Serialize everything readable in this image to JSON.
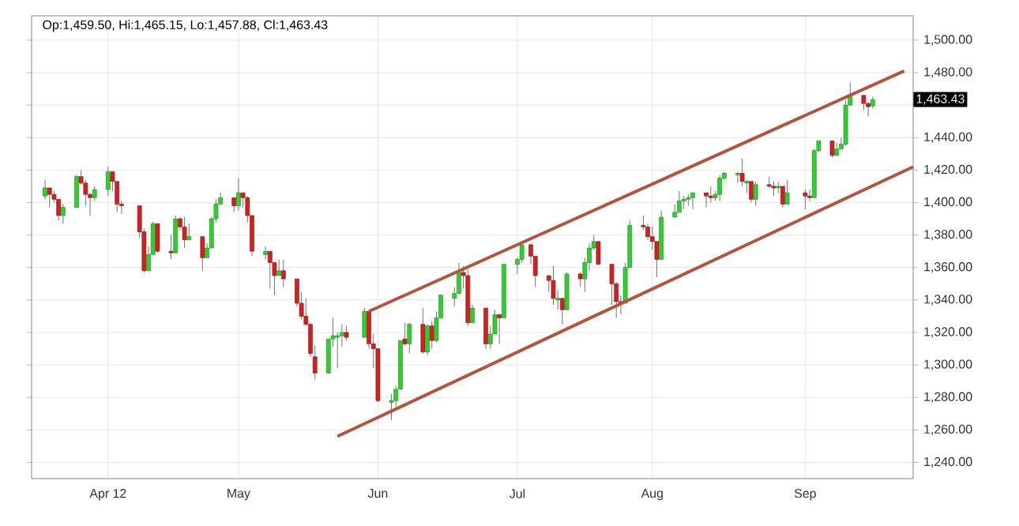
{
  "chart_data": {
    "type": "candlestick",
    "annotations": [
      "Op:1,459.50, Hi:1,465.15, Lo:1,457.88, Cl:1,463.43",
      "1,463.43"
    ],
    "xlim": [
      "2012-03-16",
      "2012-09-28"
    ],
    "xticks": [
      {
        "value": "2012-04-02",
        "label": "Apr 12"
      },
      {
        "value": "2012-05-01",
        "label": "May"
      },
      {
        "value": "2012-06-01",
        "label": "Jun"
      },
      {
        "value": "2012-07-02",
        "label": "Jul"
      },
      {
        "value": "2012-08-01",
        "label": "Aug"
      },
      {
        "value": "2012-09-04",
        "label": "Sep"
      }
    ],
    "ylim": [
      1230,
      1515
    ],
    "yticks": [
      {
        "value": 1240,
        "label": "1,240.00"
      },
      {
        "value": 1260,
        "label": "1,260.00"
      },
      {
        "value": 1280,
        "label": "1,280.00"
      },
      {
        "value": 1300,
        "label": "1,300.00"
      },
      {
        "value": 1320,
        "label": "1,320.00"
      },
      {
        "value": 1340,
        "label": "1,340.00"
      },
      {
        "value": 1360,
        "label": "1,360.00"
      },
      {
        "value": 1380,
        "label": "1,380.00"
      },
      {
        "value": 1400,
        "label": "1,400.00"
      },
      {
        "value": 1420,
        "label": "1,420.00"
      },
      {
        "value": 1440,
        "label": "1,440.00"
      },
      {
        "value": 1460,
        "label": null
      },
      {
        "value": 1480,
        "label": "1,480.00"
      },
      {
        "value": 1500,
        "label": "1,500.00"
      }
    ],
    "grid": true,
    "series": [
      {
        "x": [
          "2012-03-19",
          "2012-03-20",
          "2012-03-21",
          "2012-03-22",
          "2012-03-23",
          "2012-03-26",
          "2012-03-27",
          "2012-03-28",
          "2012-03-29",
          "2012-03-30",
          "2012-04-02",
          "2012-04-03",
          "2012-04-04",
          "2012-04-05",
          "2012-04-09",
          "2012-04-10",
          "2012-04-11",
          "2012-04-12",
          "2012-04-13",
          "2012-04-16",
          "2012-04-17",
          "2012-04-18",
          "2012-04-19",
          "2012-04-20",
          "2012-04-23",
          "2012-04-24",
          "2012-04-25",
          "2012-04-26",
          "2012-04-27",
          "2012-04-30",
          "2012-05-01",
          "2012-05-02",
          "2012-05-03",
          "2012-05-04",
          "2012-05-07",
          "2012-05-08",
          "2012-05-09",
          "2012-05-10",
          "2012-05-11",
          "2012-05-14",
          "2012-05-15",
          "2012-05-16",
          "2012-05-17",
          "2012-05-18",
          "2012-05-21",
          "2012-05-22",
          "2012-05-23",
          "2012-05-24",
          "2012-05-25",
          "2012-05-29",
          "2012-05-30",
          "2012-05-31",
          "2012-06-01",
          "2012-06-04",
          "2012-06-05",
          "2012-06-06",
          "2012-06-07",
          "2012-06-08",
          "2012-06-11",
          "2012-06-12",
          "2012-06-13",
          "2012-06-14",
          "2012-06-15",
          "2012-06-18",
          "2012-06-19",
          "2012-06-20",
          "2012-06-21",
          "2012-06-22",
          "2012-06-25",
          "2012-06-26",
          "2012-06-27",
          "2012-06-28",
          "2012-06-29",
          "2012-07-02",
          "2012-07-03",
          "2012-07-05",
          "2012-07-06",
          "2012-07-09",
          "2012-07-10",
          "2012-07-11",
          "2012-07-12",
          "2012-07-13",
          "2012-07-16",
          "2012-07-17",
          "2012-07-18",
          "2012-07-19",
          "2012-07-20",
          "2012-07-23",
          "2012-07-24",
          "2012-07-25",
          "2012-07-26",
          "2012-07-27",
          "2012-07-30",
          "2012-07-31",
          "2012-08-01",
          "2012-08-02",
          "2012-08-03",
          "2012-08-06",
          "2012-08-07",
          "2012-08-08",
          "2012-08-09",
          "2012-08-10",
          "2012-08-13",
          "2012-08-14",
          "2012-08-15",
          "2012-08-16",
          "2012-08-17",
          "2012-08-20",
          "2012-08-21",
          "2012-08-22",
          "2012-08-23",
          "2012-08-24",
          "2012-08-27",
          "2012-08-28",
          "2012-08-29",
          "2012-08-30",
          "2012-08-31",
          "2012-09-04",
          "2012-09-05",
          "2012-09-06",
          "2012-09-07",
          "2012-09-10",
          "2012-09-11",
          "2012-09-12",
          "2012-09-13",
          "2012-09-14",
          "2012-09-17",
          "2012-09-18",
          "2012-09-19"
        ],
        "ohlc": [
          [
            1404,
            1414,
            1402,
            1409
          ],
          [
            1409,
            1409,
            1397,
            1405
          ],
          [
            1405,
            1407,
            1400,
            1402
          ],
          [
            1402,
            1402,
            1389,
            1392
          ],
          [
            1392,
            1399,
            1387,
            1397
          ],
          [
            1397,
            1417,
            1397,
            1416
          ],
          [
            1416,
            1420,
            1411,
            1412
          ],
          [
            1412,
            1414,
            1398,
            1405
          ],
          [
            1405,
            1406,
            1392,
            1403
          ],
          [
            1403,
            1410,
            1401,
            1408
          ],
          [
            1408,
            1422,
            1404,
            1419
          ],
          [
            1419,
            1419,
            1407,
            1413
          ],
          [
            1413,
            1413,
            1394,
            1399
          ],
          [
            1399,
            1401,
            1393,
            1398
          ],
          [
            1398,
            1398,
            1378,
            1382
          ],
          [
            1382,
            1384,
            1357,
            1358
          ],
          [
            1358,
            1373,
            1358,
            1368
          ],
          [
            1368,
            1388,
            1368,
            1387
          ],
          [
            1387,
            1387,
            1369,
            1370
          ],
          [
            1370,
            1380,
            1365,
            1369
          ],
          [
            1369,
            1392,
            1369,
            1390
          ],
          [
            1390,
            1391,
            1383,
            1385
          ],
          [
            1385,
            1391,
            1372,
            1377
          ],
          [
            1377,
            1387,
            1377,
            1379
          ],
          [
            1379,
            1379,
            1358,
            1366
          ],
          [
            1366,
            1375,
            1366,
            1372
          ],
          [
            1372,
            1391,
            1372,
            1390
          ],
          [
            1390,
            1402,
            1388,
            1399
          ],
          [
            1399,
            1406,
            1399,
            1403
          ],
          [
            1403,
            1403,
            1394,
            1398
          ],
          [
            1398,
            1415,
            1395,
            1406
          ],
          [
            1406,
            1406,
            1397,
            1403
          ],
          [
            1403,
            1404,
            1388,
            1392
          ],
          [
            1392,
            1392,
            1367,
            1370
          ],
          [
            1368,
            1373,
            1365,
            1370
          ],
          [
            1370,
            1370,
            1347,
            1363
          ],
          [
            1363,
            1363,
            1343,
            1355
          ],
          [
            1355,
            1365,
            1355,
            1358
          ],
          [
            1358,
            1365,
            1348,
            1353
          ],
          [
            1353,
            1353,
            1336,
            1338
          ],
          [
            1338,
            1345,
            1328,
            1330
          ],
          [
            1330,
            1341,
            1324,
            1325
          ],
          [
            1325,
            1326,
            1305,
            1307
          ],
          [
            1305,
            1312,
            1291,
            1295
          ],
          [
            1295,
            1316,
            1295,
            1316
          ],
          [
            1316,
            1329,
            1311,
            1318
          ],
          [
            1317,
            1320,
            1298,
            1318
          ],
          [
            1318,
            1325,
            1311,
            1320
          ],
          [
            1320,
            1324,
            1315,
            1317
          ],
          [
            1317,
            1335,
            1317,
            1333
          ],
          [
            1333,
            1333,
            1310,
            1313
          ],
          [
            1313,
            1319,
            1298,
            1310
          ],
          [
            1310,
            1310,
            1277,
            1278
          ],
          [
            1277,
            1282,
            1266,
            1278
          ],
          [
            1278,
            1287,
            1274,
            1285
          ],
          [
            1285,
            1315,
            1285,
            1315
          ],
          [
            1316,
            1326,
            1312,
            1313
          ],
          [
            1313,
            1326,
            1307,
            1325
          ],
          [
            1325,
            1335,
            1307,
            1308
          ],
          [
            1308,
            1325,
            1306,
            1324
          ],
          [
            1324,
            1327,
            1310,
            1315
          ],
          [
            1315,
            1333,
            1314,
            1329
          ],
          [
            1329,
            1343,
            1329,
            1343
          ],
          [
            1341,
            1348,
            1336,
            1344
          ],
          [
            1344,
            1363,
            1344,
            1357
          ],
          [
            1357,
            1361,
            1347,
            1355
          ],
          [
            1355,
            1359,
            1324,
            1326
          ],
          [
            1326,
            1337,
            1326,
            1335
          ],
          [
            1335,
            1335,
            1310,
            1313
          ],
          [
            1313,
            1324,
            1310,
            1319
          ],
          [
            1319,
            1334,
            1319,
            1331
          ],
          [
            1331,
            1331,
            1313,
            1329
          ],
          [
            1329,
            1362,
            1329,
            1362
          ],
          [
            1362,
            1366,
            1356,
            1365
          ],
          [
            1365,
            1374,
            1363,
            1374
          ],
          [
            1374,
            1375,
            1362,
            1367
          ],
          [
            1367,
            1367,
            1348,
            1355
          ],
          [
            1355,
            1355,
            1345,
            1352
          ],
          [
            1352,
            1361,
            1337,
            1341
          ],
          [
            1340,
            1346,
            1334,
            1341
          ],
          [
            1341,
            1341,
            1325,
            1334
          ],
          [
            1334,
            1357,
            1334,
            1356
          ],
          [
            1356,
            1357,
            1348,
            1353
          ],
          [
            1353,
            1366,
            1345,
            1363
          ],
          [
            1363,
            1375,
            1358,
            1372
          ],
          [
            1372,
            1380,
            1371,
            1376
          ],
          [
            1376,
            1376,
            1362,
            1362
          ],
          [
            1362,
            1362,
            1337,
            1350
          ],
          [
            1350,
            1351,
            1329,
            1339
          ],
          [
            1339,
            1343,
            1331,
            1338
          ],
          [
            1338,
            1363,
            1338,
            1360
          ],
          [
            1360,
            1389,
            1360,
            1386
          ],
          [
            1386,
            1392,
            1383,
            1385
          ],
          [
            1385,
            1387,
            1377,
            1379
          ],
          [
            1379,
            1385,
            1371,
            1376
          ],
          [
            1376,
            1376,
            1354,
            1365
          ],
          [
            1365,
            1395,
            1365,
            1391
          ],
          [
            1391,
            1399,
            1391,
            1394
          ],
          [
            1394,
            1407,
            1394,
            1401
          ],
          [
            1401,
            1404,
            1396,
            1402
          ],
          [
            1402,
            1405,
            1398,
            1403
          ],
          [
            1403,
            1406,
            1396,
            1406
          ],
          [
            1406,
            1406,
            1397,
            1404
          ],
          [
            1404,
            1410,
            1400,
            1403
          ],
          [
            1403,
            1407,
            1401,
            1405
          ],
          [
            1405,
            1417,
            1401,
            1415
          ],
          [
            1415,
            1419,
            1414,
            1418
          ],
          [
            1417,
            1419,
            1412,
            1418
          ],
          [
            1418,
            1427,
            1410,
            1413
          ],
          [
            1412,
            1414,
            1406,
            1413
          ],
          [
            1413,
            1413,
            1400,
            1402
          ],
          [
            1402,
            1413,
            1398,
            1411
          ],
          [
            1411,
            1416,
            1409,
            1410
          ],
          [
            1410,
            1413,
            1404,
            1409
          ],
          [
            1409,
            1413,
            1406,
            1410
          ],
          [
            1410,
            1410,
            1397,
            1399
          ],
          [
            1399,
            1414,
            1399,
            1406
          ],
          [
            1406,
            1408,
            1396,
            1404
          ],
          [
            1404,
            1408,
            1401,
            1403
          ],
          [
            1403,
            1433,
            1403,
            1432
          ],
          [
            1432,
            1438,
            1431,
            1438
          ],
          [
            1438,
            1438,
            1428,
            1429
          ],
          [
            1429,
            1437,
            1429,
            1433
          ],
          [
            1433,
            1440,
            1433,
            1436
          ],
          [
            1436,
            1463,
            1435,
            1460
          ],
          [
            1460,
            1474,
            1460,
            1466
          ],
          [
            1466,
            1466,
            1457,
            1461
          ],
          [
            1461,
            1462,
            1453,
            1459
          ],
          [
            1459.5,
            1465.15,
            1457.88,
            1463.43
          ]
        ],
        "colors": [
          "#33cc33",
          "#cc2222",
          "#cc2222",
          "#cc2222",
          "#33cc33",
          "#33cc33",
          "#cc2222",
          "#cc2222",
          "#cc2222",
          "#33cc33",
          "#33cc33",
          "#cc2222",
          "#cc2222",
          "#cc2222",
          "#cc2222",
          "#cc2222",
          "#33cc33",
          "#33cc33",
          "#cc2222",
          "#cc2222",
          "#33cc33",
          "#cc2222",
          "#cc2222",
          "#33cc33",
          "#cc2222",
          "#33cc33",
          "#33cc33",
          "#33cc33",
          "#33cc33",
          "#cc2222",
          "#33cc33",
          "#cc2222",
          "#cc2222",
          "#cc2222",
          "#33cc33",
          "#cc2222",
          "#cc2222",
          "#33cc33",
          "#cc2222",
          "#cc2222",
          "#cc2222",
          "#cc2222",
          "#cc2222",
          "#cc2222",
          "#33cc33",
          "#33cc33",
          "#33cc33",
          "#33cc33",
          "#cc2222",
          "#33cc33",
          "#cc2222",
          "#cc2222",
          "#cc2222",
          "#33cc33",
          "#33cc33",
          "#33cc33",
          "#cc2222",
          "#33cc33",
          "#cc2222",
          "#33cc33",
          "#cc2222",
          "#33cc33",
          "#33cc33",
          "#33cc33",
          "#33cc33",
          "#cc2222",
          "#cc2222",
          "#33cc33",
          "#cc2222",
          "#33cc33",
          "#33cc33",
          "#cc2222",
          "#33cc33",
          "#33cc33",
          "#33cc33",
          "#cc2222",
          "#cc2222",
          "#cc2222",
          "#cc2222",
          "#33cc33",
          "#cc2222",
          "#33cc33",
          "#cc2222",
          "#33cc33",
          "#33cc33",
          "#33cc33",
          "#cc2222",
          "#cc2222",
          "#cc2222",
          "#cc2222",
          "#33cc33",
          "#33cc33",
          "#cc2222",
          "#cc2222",
          "#cc2222",
          "#cc2222",
          "#33cc33",
          "#33cc33",
          "#33cc33",
          "#33cc33",
          "#33cc33",
          "#33cc33",
          "#cc2222",
          "#cc2222",
          "#33cc33",
          "#33cc33",
          "#33cc33",
          "#33cc33",
          "#cc2222",
          "#33cc33",
          "#cc2222",
          "#33cc33",
          "#cc2222",
          "#cc2222",
          "#33cc33",
          "#cc2222",
          "#33cc33",
          "#cc2222",
          "#cc2222",
          "#33cc33",
          "#33cc33",
          "#cc2222",
          "#33cc33",
          "#33cc33",
          "#33cc33",
          "#33cc33",
          "#cc2222",
          "#cc2222",
          "#33cc33"
        ]
      },
      {
        "type": "line",
        "color": "#b5533c",
        "x": [
          "2012-05-30",
          "2012-09-26"
        ],
        "values": [
          1333,
          1481
        ]
      },
      {
        "type": "line",
        "color": "#b5533c",
        "x": [
          "2012-05-23",
          "2012-09-28"
        ],
        "values": [
          1256,
          1422
        ]
      }
    ]
  }
}
